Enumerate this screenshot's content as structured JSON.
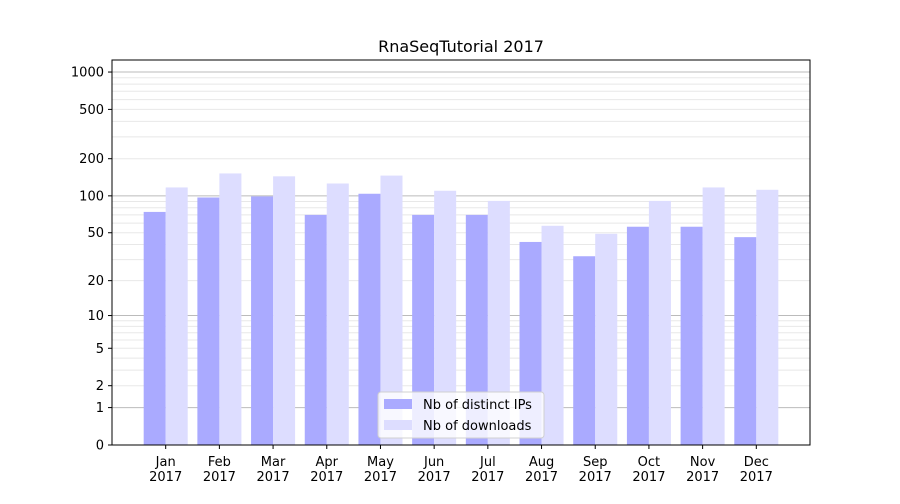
{
  "chart_data": {
    "type": "bar",
    "title": "RnaSeqTutorial 2017",
    "xlabel": "",
    "ylabel": "",
    "yscale": "log(1+y)",
    "ylim": [
      0,
      1250
    ],
    "yticks": [
      0,
      1,
      2,
      5,
      10,
      20,
      50,
      100,
      200,
      500,
      1000
    ],
    "grid": true,
    "legend_position": "lower center",
    "categories": [
      "Jan\n2017",
      "Feb\n2017",
      "Mar\n2017",
      "Apr\n2017",
      "May\n2017",
      "Jun\n2017",
      "Jul\n2017",
      "Aug\n2017",
      "Sep\n2017",
      "Oct\n2017",
      "Nov\n2017",
      "Dec\n2017"
    ],
    "series": [
      {
        "name": "Nb of distinct IPs",
        "color": "#aaaaff",
        "values": [
          74,
          97,
          99,
          70,
          104,
          70,
          70,
          42,
          32,
          56,
          56,
          46
        ]
      },
      {
        "name": "Nb of downloads",
        "color": "#ddddff",
        "values": [
          117,
          152,
          144,
          126,
          146,
          110,
          91,
          57,
          49,
          91,
          117,
          112
        ]
      }
    ]
  }
}
